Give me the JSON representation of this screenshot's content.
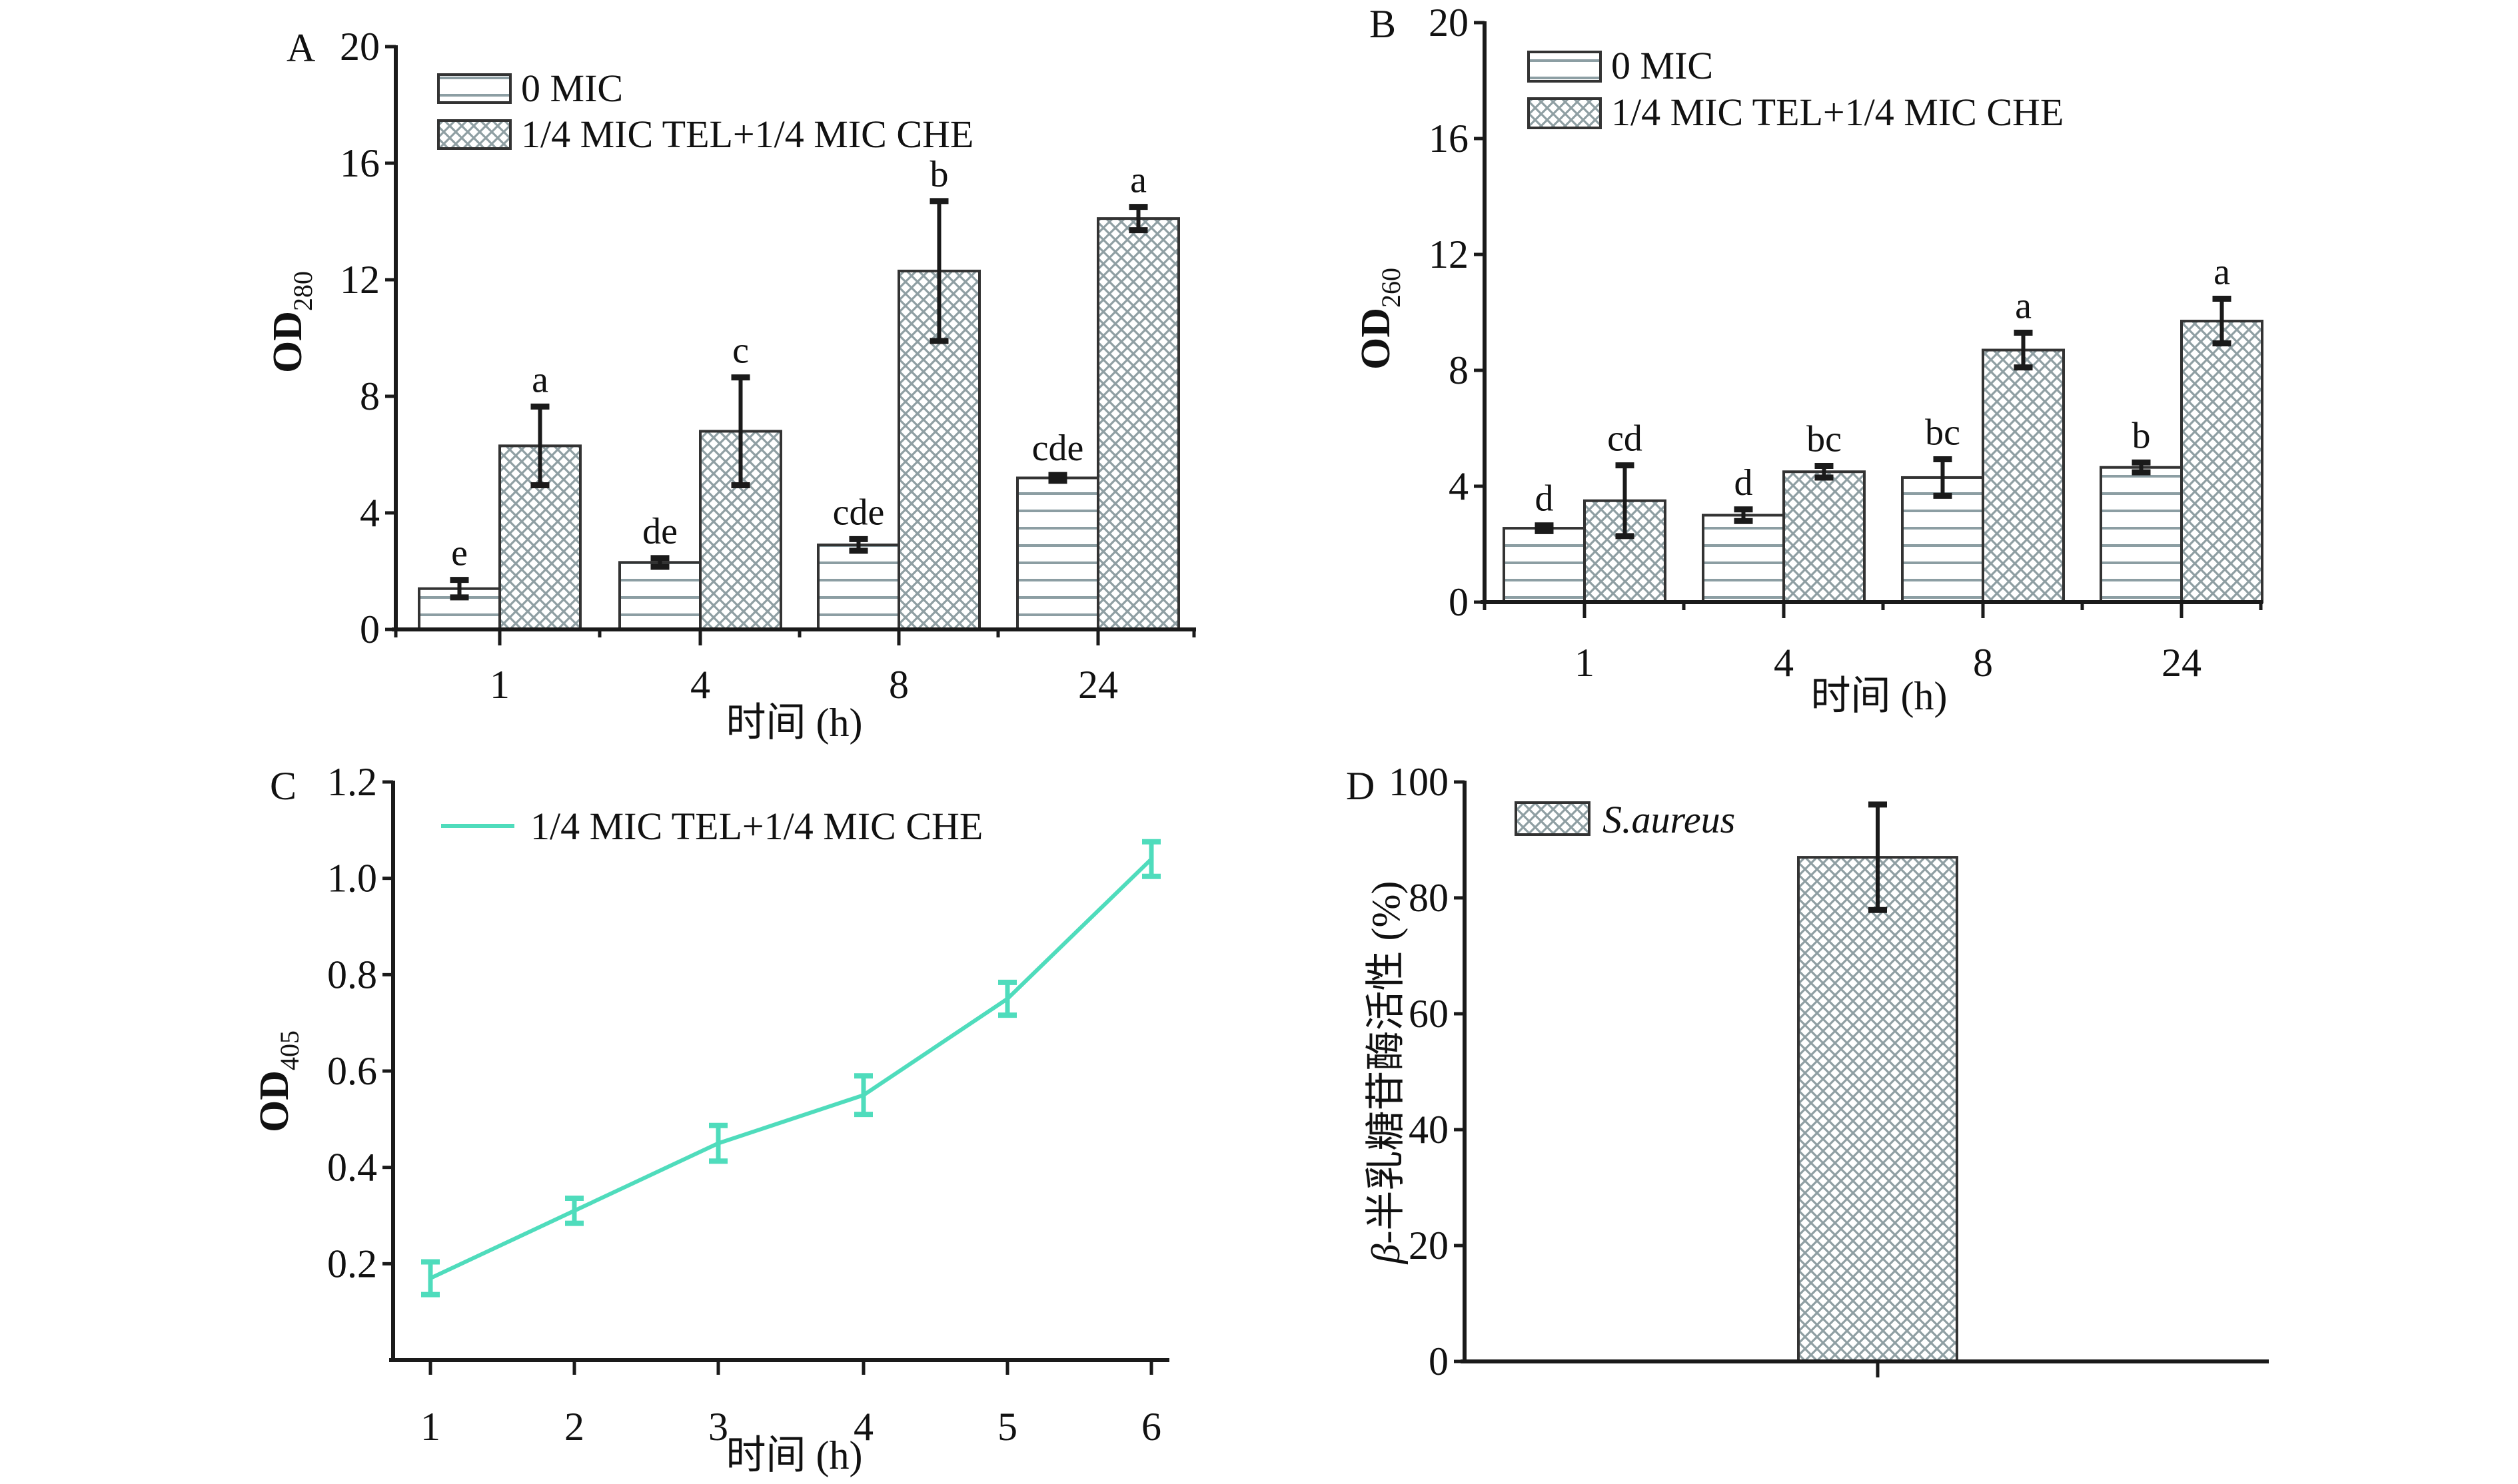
{
  "figure": {
    "colors": {
      "axis": "#1a1a1a",
      "pattern_lines": "#8c9ea3",
      "crosshatch": "#8f9fa3",
      "line_series": "#4fdcbc"
    }
  },
  "chart_data": [
    {
      "panel": "A",
      "type": "bar",
      "title": "",
      "panel_letter": "A",
      "xlabel": "时间 (h)",
      "ylabel_main": "OD",
      "ylabel_sub": "280",
      "ylim": [
        0,
        20
      ],
      "yticks": [
        0,
        4,
        8,
        12,
        16,
        20
      ],
      "ytick_labels": [
        "0",
        "4",
        "8",
        "12",
        "16",
        "20"
      ],
      "categories": [
        "1",
        "4",
        "8",
        "24"
      ],
      "legend_position": "top-left",
      "grid": false,
      "series": [
        {
          "name": "0 MIC",
          "pattern": "horizontal-lines",
          "values": [
            1.4,
            2.3,
            2.9,
            5.2
          ],
          "errors": [
            0.3,
            0.15,
            0.2,
            0.1
          ],
          "significance": [
            "e",
            "de",
            "cde",
            "cde"
          ]
        },
        {
          "name": "1/4 MIC TEL+1/4 MIC CHE",
          "pattern": "crosshatch",
          "values": [
            6.3,
            6.8,
            12.3,
            14.1
          ],
          "errors": [
            1.35,
            1.85,
            2.4,
            0.4
          ],
          "significance": [
            "a",
            "c",
            "b",
            "a"
          ]
        }
      ]
    },
    {
      "panel": "B",
      "type": "bar",
      "title": "",
      "panel_letter": "B",
      "xlabel": "时间 (h)",
      "ylabel_main": "OD",
      "ylabel_sub": "260",
      "ylim": [
        0,
        20
      ],
      "yticks": [
        0,
        4,
        8,
        12,
        16,
        20
      ],
      "ytick_labels": [
        "0",
        "4",
        "8",
        "12",
        "16",
        "20"
      ],
      "categories": [
        "1",
        "4",
        "8",
        "24"
      ],
      "legend_position": "top-left",
      "grid": false,
      "series": [
        {
          "name": "0 MIC",
          "pattern": "horizontal-lines",
          "values": [
            2.55,
            3.0,
            4.3,
            4.65
          ],
          "errors": [
            0.1,
            0.2,
            0.63,
            0.17
          ],
          "significance": [
            "d",
            "d",
            "bc",
            "b"
          ]
        },
        {
          "name": "1/4 MIC TEL+1/4 MIC CHE",
          "pattern": "crosshatch",
          "values": [
            3.5,
            4.5,
            8.7,
            9.7
          ],
          "errors": [
            1.22,
            0.2,
            0.6,
            0.77
          ],
          "significance": [
            "cd",
            "bc",
            "a",
            "a"
          ]
        }
      ]
    },
    {
      "panel": "C",
      "type": "line",
      "title": "",
      "panel_letter": "C",
      "xlabel": "时间 (h)",
      "ylabel_main": "OD",
      "ylabel_sub": "405",
      "xlim": [
        0.75,
        6.25
      ],
      "ylim": [
        0,
        1.2
      ],
      "x": [
        1,
        2,
        3,
        4,
        5,
        6
      ],
      "xtick_labels": [
        "1",
        "2",
        "3",
        "4",
        "5",
        "6"
      ],
      "yticks": [
        0.2,
        0.4,
        0.6,
        0.8,
        1.0,
        1.2
      ],
      "ytick_labels": [
        "0.2",
        "0.4",
        "0.6",
        "0.8",
        "1.0",
        "1.2"
      ],
      "legend_position": "top-left",
      "grid": false,
      "series": [
        {
          "name": "1/4 MIC TEL+1/4 MIC CHE",
          "values": [
            0.17,
            0.31,
            0.45,
            0.55,
            0.75,
            1.04
          ],
          "errors": [
            0.034,
            0.026,
            0.037,
            0.04,
            0.034,
            0.036
          ]
        }
      ]
    },
    {
      "panel": "D",
      "type": "bar",
      "title": "",
      "panel_letter": "D",
      "xlabel": "",
      "ylabel_prefix": "β",
      "ylabel": "-半乳糖苷酶活性 (%)",
      "ylim": [
        0,
        100
      ],
      "yticks": [
        0,
        20,
        40,
        60,
        80,
        100
      ],
      "ytick_labels": [
        "0",
        "20",
        "40",
        "60",
        "80",
        "100"
      ],
      "categories": [
        ""
      ],
      "legend_position": "top-left",
      "grid": false,
      "series": [
        {
          "name": "S.aureus",
          "pattern": "crosshatch",
          "values": [
            87
          ],
          "errors": [
            9.1
          ]
        }
      ]
    }
  ]
}
